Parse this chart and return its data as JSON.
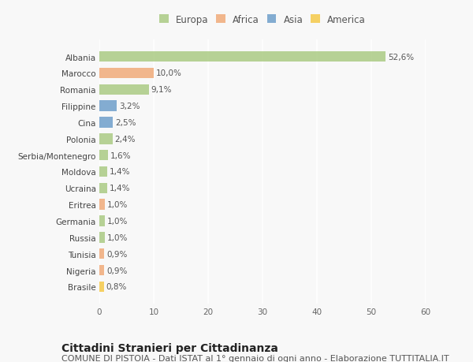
{
  "categories": [
    "Albania",
    "Marocco",
    "Romania",
    "Filippine",
    "Cina",
    "Polonia",
    "Serbia/Montenegro",
    "Moldova",
    "Ucraina",
    "Eritrea",
    "Germania",
    "Russia",
    "Tunisia",
    "Nigeria",
    "Brasile"
  ],
  "values": [
    52.6,
    10.0,
    9.1,
    3.2,
    2.5,
    2.4,
    1.6,
    1.4,
    1.4,
    1.0,
    1.0,
    1.0,
    0.9,
    0.9,
    0.8
  ],
  "labels": [
    "52,6%",
    "10,0%",
    "9,1%",
    "3,2%",
    "2,5%",
    "2,4%",
    "1,6%",
    "1,4%",
    "1,4%",
    "1,0%",
    "1,0%",
    "1,0%",
    "0,9%",
    "0,9%",
    "0,8%"
  ],
  "continents": [
    "Europa",
    "Africa",
    "Europa",
    "Asia",
    "Asia",
    "Europa",
    "Europa",
    "Europa",
    "Europa",
    "Africa",
    "Europa",
    "Europa",
    "Africa",
    "Africa",
    "America"
  ],
  "colors": {
    "Europa": "#a8c97f",
    "Africa": "#f0a875",
    "Asia": "#6a9bc9",
    "America": "#f5c842"
  },
  "xlim": [
    0,
    60
  ],
  "xticks": [
    0,
    10,
    20,
    30,
    40,
    50,
    60
  ],
  "title": "Cittadini Stranieri per Cittadinanza",
  "subtitle": "COMUNE DI PISTOIA - Dati ISTAT al 1° gennaio di ogni anno - Elaborazione TUTTITALIA.IT",
  "background_color": "#f8f8f8",
  "bar_height": 0.65,
  "title_fontsize": 10,
  "subtitle_fontsize": 8,
  "label_fontsize": 7.5,
  "tick_fontsize": 7.5,
  "legend_fontsize": 8.5
}
